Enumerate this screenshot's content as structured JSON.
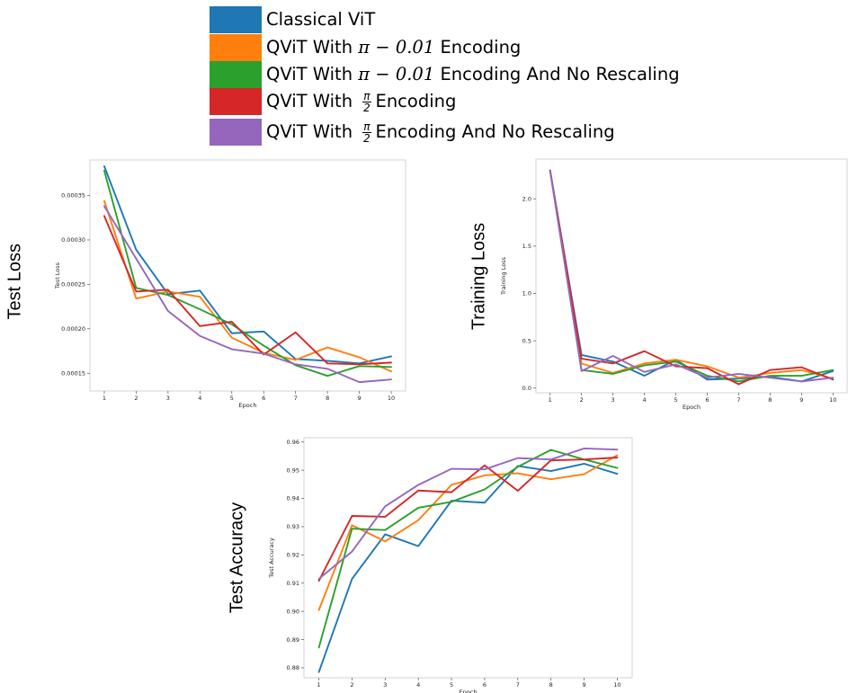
{
  "legend": {
    "items": [
      {
        "name": "Classical ViT",
        "color": "#1f77b4",
        "label": "Classical ViT",
        "parts": null
      },
      {
        "name": "QViT With π − 0.01 Encoding",
        "color": "#ff7f0e",
        "label": null,
        "parts": {
          "pre": "QViT With ",
          "math": "π − 0.01",
          "post": " Encoding"
        }
      },
      {
        "name": "QViT With π − 0.01 Encoding And No Rescaling",
        "color": "#2ca02c",
        "label": null,
        "parts": {
          "pre": "QViT With ",
          "math": "π − 0.01",
          "post": " Encoding And No Rescaling"
        }
      },
      {
        "name": "QViT With π/2 Encoding",
        "color": "#d62728",
        "label": null,
        "parts": {
          "pre": "QViT With ",
          "frac_num": "π",
          "frac_den": "2",
          "post": "Encoding"
        }
      },
      {
        "name": "QViT With π/2 Encoding And No Rescaling",
        "color": "#9467bd",
        "label": null,
        "parts": {
          "pre": "QViT With ",
          "frac_num": "π",
          "frac_den": "2",
          "post": "Encoding And No Rescaling"
        }
      }
    ]
  },
  "outer_labels": {
    "test_loss": "Test Loss",
    "training_loss": "Training Loss",
    "test_accuracy": "Test Accuracy"
  },
  "chart_data": [
    {
      "id": "test_loss",
      "type": "line",
      "xlabel": "Epoch",
      "ylabel": "Test Loss",
      "x": [
        1,
        2,
        3,
        4,
        5,
        6,
        7,
        8,
        9,
        10
      ],
      "xlim": [
        0.55,
        10.45
      ],
      "ylim": [
        0.00013,
        0.00039
      ],
      "yticks": [
        0.00015,
        0.0002,
        0.00025,
        0.0003,
        0.00035
      ],
      "ytick_labels": [
        "0.00015",
        "0.00020",
        "0.00025",
        "0.00030",
        "0.00035"
      ],
      "series": [
        {
          "name": "Classical ViT",
          "color": "#1f77b4",
          "values": [
            0.000383,
            0.000289,
            0.000239,
            0.000243,
            0.000195,
            0.000197,
            0.000166,
            0.000164,
            0.000161,
            0.000169
          ]
        },
        {
          "name": "QViT With π − 0.01 Encoding",
          "color": "#ff7f0e",
          "values": [
            0.000344,
            0.000234,
            0.000242,
            0.000236,
            0.00019,
            0.000173,
            0.000165,
            0.000179,
            0.000168,
            0.000152
          ]
        },
        {
          "name": "QViT With π − 0.01 Encoding And No Rescaling",
          "color": "#2ca02c",
          "values": [
            0.000378,
            0.000246,
            0.000238,
            0.000222,
            0.000205,
            0.000181,
            0.000159,
            0.000147,
            0.000158,
            0.000157
          ]
        },
        {
          "name": "QViT With π/2 Encoding",
          "color": "#d62728",
          "values": [
            0.000327,
            0.000242,
            0.000244,
            0.000203,
            0.000208,
            0.000171,
            0.000196,
            0.000161,
            0.00016,
            0.000162
          ]
        },
        {
          "name": "QViT With π/2 Encoding And No Rescaling",
          "color": "#9467bd",
          "values": [
            0.000338,
            0.000279,
            0.00022,
            0.000192,
            0.000177,
            0.000172,
            0.00016,
            0.000155,
            0.00014,
            0.000143
          ]
        }
      ]
    },
    {
      "id": "training_loss",
      "type": "line",
      "xlabel": "Epoch",
      "ylabel": "Training Loss",
      "x": [
        1,
        2,
        3,
        4,
        5,
        6,
        7,
        8,
        9,
        10
      ],
      "xlim": [
        0.55,
        10.45
      ],
      "ylim": [
        -0.05,
        2.42
      ],
      "yticks": [
        0.0,
        0.5,
        1.0,
        1.5,
        2.0
      ],
      "ytick_labels": [
        "0.0",
        "0.5",
        "1.0",
        "1.5",
        "2.0"
      ],
      "series": [
        {
          "name": "Classical ViT",
          "color": "#1f77b4",
          "values": [
            2.3,
            0.35,
            0.28,
            0.13,
            0.3,
            0.09,
            0.1,
            0.12,
            0.07,
            0.18
          ]
        },
        {
          "name": "QViT With π − 0.01 Encoding",
          "color": "#ff7f0e",
          "values": [
            2.3,
            0.26,
            0.16,
            0.26,
            0.3,
            0.23,
            0.11,
            0.16,
            0.19,
            0.1
          ]
        },
        {
          "name": "QViT With π − 0.01 Encoding And No Rescaling",
          "color": "#2ca02c",
          "values": [
            2.3,
            0.19,
            0.15,
            0.24,
            0.28,
            0.13,
            0.07,
            0.13,
            0.13,
            0.19
          ]
        },
        {
          "name": "QViT With π/2 Encoding",
          "color": "#d62728",
          "values": [
            2.3,
            0.31,
            0.26,
            0.39,
            0.23,
            0.21,
            0.04,
            0.19,
            0.22,
            0.09
          ]
        },
        {
          "name": "QViT With π/2 Encoding And No Rescaling",
          "color": "#9467bd",
          "values": [
            2.3,
            0.18,
            0.34,
            0.17,
            0.25,
            0.11,
            0.15,
            0.11,
            0.07,
            0.11
          ]
        }
      ]
    },
    {
      "id": "test_accuracy",
      "type": "line",
      "xlabel": "Epoch",
      "ylabel": "Test Accuracy",
      "x": [
        1,
        2,
        3,
        4,
        5,
        6,
        7,
        8,
        9,
        10
      ],
      "xlim": [
        0.55,
        10.45
      ],
      "ylim": [
        0.8765,
        0.9615
      ],
      "yticks": [
        0.88,
        0.89,
        0.9,
        0.91,
        0.92,
        0.93,
        0.94,
        0.95,
        0.96
      ],
      "ytick_labels": [
        "0.88",
        "0.89",
        "0.90",
        "0.91",
        "0.92",
        "0.93",
        "0.94",
        "0.95",
        "0.96"
      ],
      "series": [
        {
          "name": "Classical ViT",
          "color": "#1f77b4",
          "values": [
            0.8785,
            0.9115,
            0.9273,
            0.9231,
            0.9392,
            0.9385,
            0.9515,
            0.9497,
            0.9523,
            0.9487
          ]
        },
        {
          "name": "QViT With π − 0.01 Encoding",
          "color": "#ff7f0e",
          "values": [
            0.9005,
            0.9305,
            0.9248,
            0.9323,
            0.9448,
            0.9482,
            0.9489,
            0.9468,
            0.9486,
            0.9553
          ]
        },
        {
          "name": "QViT With π − 0.01 Encoding And No Rescaling",
          "color": "#2ca02c",
          "values": [
            0.8872,
            0.9293,
            0.9288,
            0.9367,
            0.9388,
            0.9432,
            0.9512,
            0.9572,
            0.9538,
            0.9508
          ]
        },
        {
          "name": "QViT With π/2 Encoding",
          "color": "#d62728",
          "values": [
            0.9108,
            0.9338,
            0.9335,
            0.9428,
            0.9422,
            0.9517,
            0.9427,
            0.9535,
            0.9538,
            0.9545
          ]
        },
        {
          "name": "QViT With π/2 Encoding And No Rescaling",
          "color": "#9467bd",
          "values": [
            0.9115,
            0.9212,
            0.9372,
            0.9448,
            0.9505,
            0.9503,
            0.9543,
            0.9538,
            0.9577,
            0.9573
          ]
        }
      ]
    }
  ]
}
